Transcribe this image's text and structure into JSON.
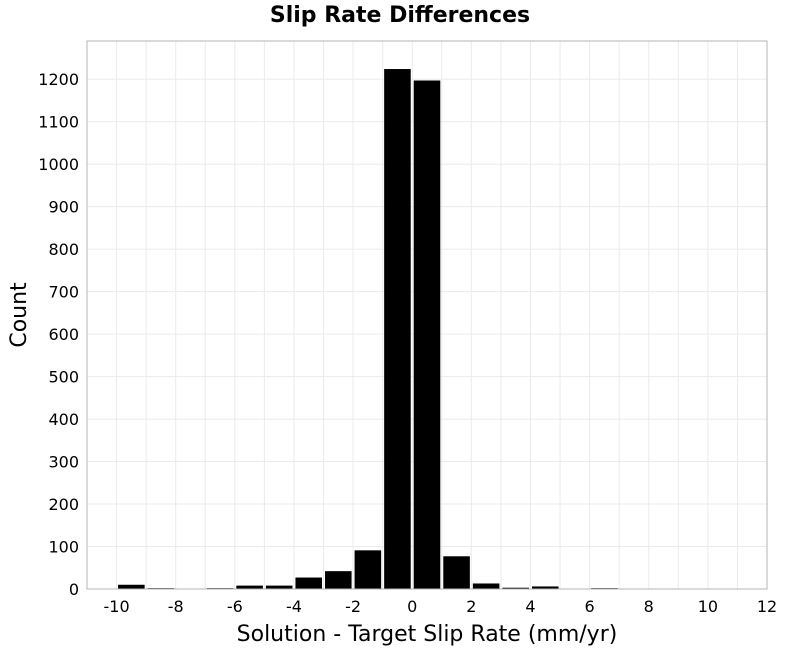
{
  "chart_data": {
    "type": "bar",
    "title": "Slip Rate Differences",
    "xlabel": "Solution - Target Slip Rate (mm/yr)",
    "ylabel": "Count",
    "xlim": [
      -11,
      12
    ],
    "ylim": [
      0,
      1290
    ],
    "xticks": [
      -10,
      -8,
      -6,
      -4,
      -2,
      0,
      2,
      4,
      6,
      8,
      10,
      12
    ],
    "yticks": [
      0,
      100,
      200,
      300,
      400,
      500,
      600,
      700,
      800,
      900,
      1000,
      1100,
      1200
    ],
    "bin_width": 1,
    "grid": true,
    "bar_color": "#000000",
    "bins": [
      {
        "x": -10,
        "count": 10
      },
      {
        "x": -9,
        "count": 2
      },
      {
        "x": -8,
        "count": 1
      },
      {
        "x": -7,
        "count": 2
      },
      {
        "x": -6,
        "count": 8
      },
      {
        "x": -5,
        "count": 8
      },
      {
        "x": -4,
        "count": 27
      },
      {
        "x": -3,
        "count": 42
      },
      {
        "x": -2,
        "count": 91
      },
      {
        "x": -1,
        "count": 1224
      },
      {
        "x": 0,
        "count": 1197
      },
      {
        "x": 1,
        "count": 77
      },
      {
        "x": 2,
        "count": 13
      },
      {
        "x": 3,
        "count": 3
      },
      {
        "x": 4,
        "count": 6
      },
      {
        "x": 5,
        "count": 0
      },
      {
        "x": 6,
        "count": 2
      },
      {
        "x": 7,
        "count": 1
      },
      {
        "x": 8,
        "count": 0
      },
      {
        "x": 9,
        "count": 0
      },
      {
        "x": 10,
        "count": 0
      },
      {
        "x": 11,
        "count": 0
      }
    ]
  }
}
